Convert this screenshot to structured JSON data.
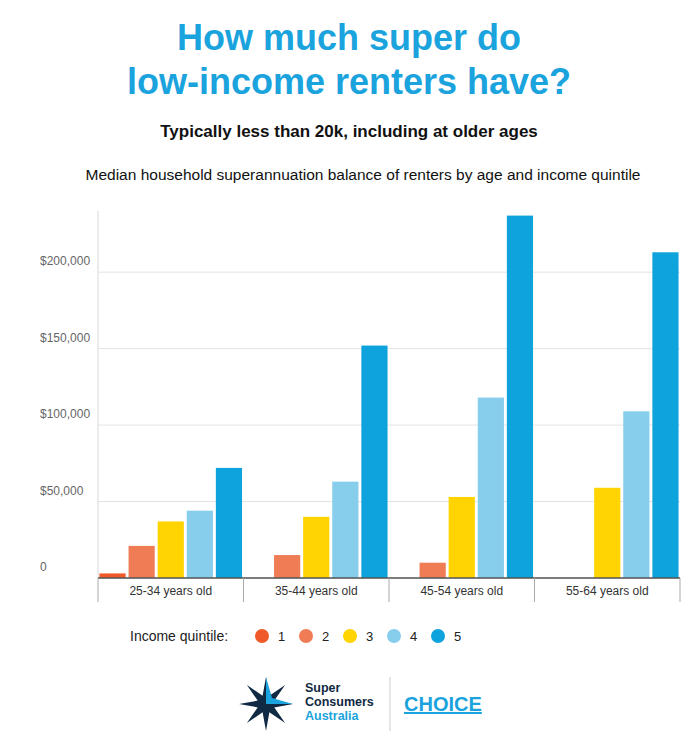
{
  "chart_data": {
    "type": "bar",
    "title": [
      "How much super do",
      "low-income renters have?"
    ],
    "subtitle": "Typically less than 20k, including at older ages",
    "chart_title": "Median household superannuation balance of renters by age and income quintile",
    "categories": [
      "25-34 years old",
      "35-44 years old",
      "45-54 years old",
      "55-64 years old"
    ],
    "legend_title": "Income quintile:",
    "legend": "bottom",
    "grid": true,
    "ylim": [
      0,
      240000
    ],
    "yticks": [
      0,
      {
        "value": 50000,
        "label": "$50,000"
      },
      {
        "value": 100000,
        "label": "$100,000"
      },
      {
        "value": 150000,
        "label": "$150,000"
      },
      {
        "value": 200000,
        "label": "$200,000"
      }
    ],
    "series": [
      {
        "name": "1",
        "color": "#ef5a28",
        "values": [
          3000,
          0,
          0,
          0
        ]
      },
      {
        "name": "2",
        "color": "#f07c55",
        "values": [
          21000,
          15000,
          10000,
          0
        ]
      },
      {
        "name": "3",
        "color": "#ffd400",
        "values": [
          37000,
          40000,
          53000,
          59000
        ]
      },
      {
        "name": "4",
        "color": "#87cdec",
        "values": [
          44000,
          63000,
          118000,
          109000
        ]
      },
      {
        "name": "5",
        "color": "#0ea3dc",
        "values": [
          72000,
          152000,
          237000,
          213000
        ]
      }
    ]
  },
  "footer": {
    "logo_lines": [
      "Super",
      "Consumers",
      "Australia"
    ],
    "partner": "CHOICE"
  }
}
